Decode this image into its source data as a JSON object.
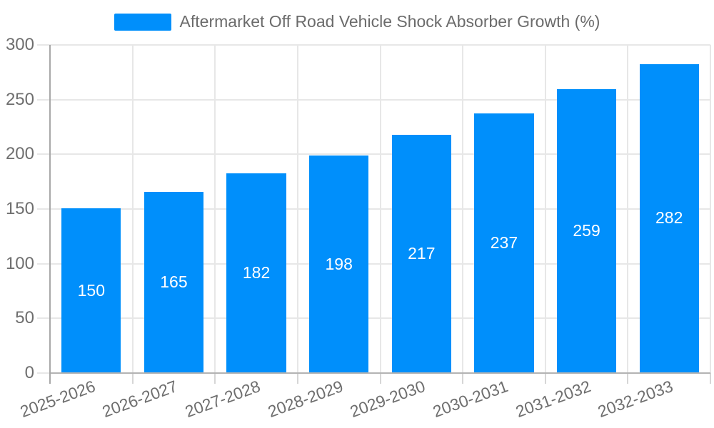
{
  "legend": {
    "label": "Aftermarket Off Road Vehicle Shock Absorber Growth (%)"
  },
  "colors": {
    "bar": "#008FFB",
    "gridline": "#e7e7e7",
    "y_axis_line": "#a8a8a8",
    "x_axis_line": "#b3b3b3",
    "x_tick": "#d6d6d6",
    "axis_label_text": "#6e6e6e",
    "legend_text": "#6b6b6b",
    "data_label_text": "#ffffff"
  },
  "chart_data": {
    "type": "bar",
    "title": "Aftermarket Off Road Vehicle Shock Absorber Growth (%)",
    "categories": [
      "2025-2026",
      "2026-2027",
      "2027-2028",
      "2028-2029",
      "2029-2030",
      "2030-2031",
      "2031-2032",
      "2032-2033"
    ],
    "values": [
      150,
      165,
      182,
      198,
      217,
      237,
      259,
      282
    ],
    "xlabel": "",
    "ylabel": "",
    "ylim": [
      0,
      300
    ],
    "yticks": [
      0,
      50,
      100,
      150,
      200,
      250,
      300
    ],
    "grid": true,
    "legend_position": "top",
    "bar_label_position": "center-inside",
    "x_label_rotation_deg": -20
  }
}
